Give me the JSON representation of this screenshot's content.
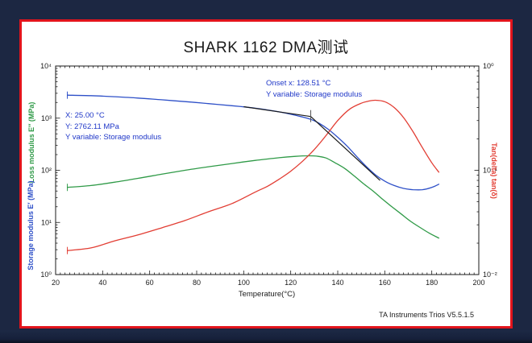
{
  "window": {
    "background_color": "#1c2742",
    "frame_color": "#e2141c",
    "panel_color": "#ffffff"
  },
  "title": "SHARK 1162 DMA测试",
  "credit": "TA Instruments Trios V5.5.1.5",
  "annotations": {
    "point": {
      "color": "#2038c8",
      "lines": [
        "X: 25.00 °C",
        "Y: 2762.11 MPa",
        "Y variable: Storage modulus"
      ]
    },
    "onset": {
      "color": "#2038c8",
      "lines": [
        "Onset x: 128.51 °C",
        "Y variable: Storage modulus"
      ]
    }
  },
  "chart_data": {
    "type": "line",
    "title": "SHARK 1162 DMA测试",
    "xlabel": "Temperature(°C)",
    "x_range": [
      20,
      200
    ],
    "x_major_ticks": [
      20,
      40,
      60,
      80,
      100,
      120,
      140,
      160,
      180,
      200
    ],
    "x_minor_step": 2,
    "grid": false,
    "left_axis": {
      "scale": "log",
      "range": [
        1,
        10000
      ],
      "labels": [
        {
          "text": "Loss modulus E″ (MPa)",
          "color": "#2f9a47"
        },
        {
          "text": "Storage modulus E′ (MPa)",
          "color": "#2e50c8"
        }
      ],
      "ticks": [
        {
          "exp": 0,
          "label": "10⁰"
        },
        {
          "exp": 1,
          "label": "10¹"
        },
        {
          "exp": 2,
          "label": "10²"
        },
        {
          "exp": 3,
          "label": "10³"
        },
        {
          "exp": 4,
          "label": "10⁴"
        }
      ]
    },
    "right_axis": {
      "scale": "log",
      "range": [
        0.01,
        1
      ],
      "label": "Tan(delta) tan(δ)",
      "color": "#e23d33",
      "ticks": [
        {
          "exp": -2,
          "label": "10⁻²"
        },
        {
          "exp": -1,
          "label": "10⁻¹"
        },
        {
          "exp": 0,
          "label": "10⁰"
        }
      ]
    },
    "series": [
      {
        "name": "Storage modulus",
        "axis": "left",
        "color": "#2e50c8",
        "x": [
          25,
          35,
          45,
          55,
          65,
          75,
          85,
          95,
          100,
          105,
          110,
          115,
          120,
          124,
          128.5,
          132,
          136,
          140,
          144,
          148,
          152,
          156,
          160,
          164,
          168,
          172,
          176,
          180,
          183
        ],
        "y": [
          2762,
          2700,
          2580,
          2430,
          2250,
          2080,
          1900,
          1730,
          1650,
          1550,
          1440,
          1320,
          1190,
          1080,
          950,
          800,
          610,
          430,
          290,
          185,
          120,
          82,
          62,
          51,
          45,
          42.5,
          42.5,
          47,
          54
        ]
      },
      {
        "name": "Loss modulus",
        "axis": "left",
        "color": "#2f9a47",
        "x": [
          25,
          35,
          45,
          55,
          65,
          75,
          85,
          95,
          105,
          115,
          122,
          127,
          131,
          135,
          139,
          143,
          147,
          151,
          155,
          159,
          163,
          167,
          171,
          175,
          179,
          183
        ],
        "y": [
          47,
          51,
          59,
          70,
          84,
          100,
          117,
          135,
          155,
          174,
          185,
          190,
          187,
          172,
          138,
          108,
          78,
          55,
          40,
          28,
          20,
          14.5,
          10.5,
          8,
          6.2,
          5
        ]
      },
      {
        "name": "Tan(delta)",
        "axis": "right",
        "color": "#e23d33",
        "x": [
          25,
          35,
          45,
          55,
          65,
          75,
          85,
          95,
          105,
          110,
          115,
          120,
          125,
          130,
          135,
          140,
          145,
          150,
          153,
          156,
          160,
          164,
          168,
          172,
          176,
          180,
          183
        ],
        "y": [
          0.017,
          0.018,
          0.021,
          0.024,
          0.028,
          0.033,
          0.04,
          0.048,
          0.062,
          0.07,
          0.082,
          0.098,
          0.122,
          0.158,
          0.215,
          0.3,
          0.385,
          0.44,
          0.46,
          0.47,
          0.455,
          0.4,
          0.32,
          0.235,
          0.165,
          0.118,
          0.096
        ]
      }
    ],
    "onset_construction": {
      "color": "#1a1a1a",
      "onset_x": 128.51,
      "lines": [
        {
          "x": [
            100,
            128.51
          ],
          "y": [
            1660,
            1075
          ]
        },
        {
          "x": [
            128.51,
            158
          ],
          "y": [
            1075,
            64
          ]
        }
      ],
      "intersection": {
        "x": 128.51,
        "y": 1075
      }
    }
  }
}
